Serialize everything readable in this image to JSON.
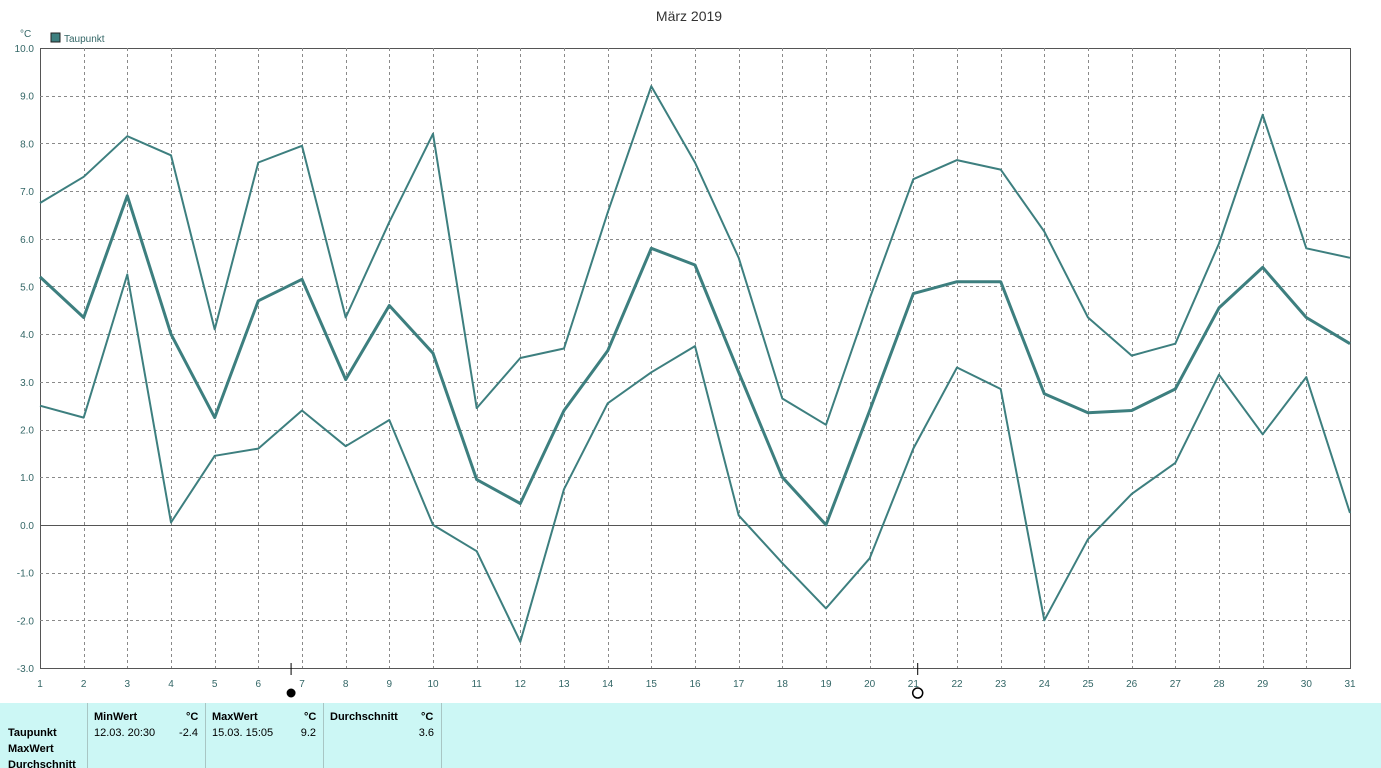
{
  "chart_data": {
    "type": "line",
    "title": "März 2019",
    "ylabel": "°C",
    "xlabel": "",
    "ylim": [
      -3.0,
      10.0
    ],
    "yticks": [
      "10.0",
      "9.0",
      "8.0",
      "7.0",
      "6.0",
      "5.0",
      "4.0",
      "3.0",
      "2.0",
      "1.0",
      "0.0",
      "-1.0",
      "-2.0",
      "-3.0"
    ],
    "x": [
      1,
      2,
      3,
      4,
      5,
      6,
      7,
      8,
      9,
      10,
      11,
      12,
      13,
      14,
      15,
      16,
      17,
      18,
      19,
      20,
      21,
      22,
      23,
      24,
      25,
      26,
      27,
      28,
      29,
      30,
      31
    ],
    "grid": true,
    "legend": {
      "position": "top-left",
      "entries": [
        "Taupunkt"
      ]
    },
    "series": [
      {
        "name": "Taupunkt",
        "color": "#3d7f7f",
        "values": [
          5.2,
          4.35,
          6.9,
          4.0,
          2.25,
          4.7,
          5.15,
          3.05,
          4.6,
          3.6,
          0.95,
          0.45,
          2.4,
          3.65,
          5.8,
          5.45,
          3.2,
          1.0,
          0.0,
          2.4,
          4.85,
          5.1,
          5.1,
          2.75,
          2.35,
          2.4,
          2.85,
          4.55,
          5.4,
          4.35,
          3.8
        ]
      },
      {
        "name": "",
        "color": "#3d7f7f",
        "values": [
          6.75,
          7.3,
          8.15,
          7.75,
          4.1,
          7.6,
          7.95,
          4.35,
          6.35,
          8.2,
          2.45,
          3.5,
          3.7,
          6.55,
          9.2,
          7.6,
          5.6,
          2.65,
          2.1,
          4.75,
          7.25,
          7.65,
          7.45,
          6.15,
          4.35,
          3.55,
          3.8,
          5.9,
          8.6,
          5.8,
          5.6
        ]
      },
      {
        "name": "",
        "color": "#3d7f7f",
        "values": [
          2.5,
          2.25,
          5.25,
          0.05,
          1.45,
          1.6,
          2.4,
          1.65,
          2.2,
          0.0,
          -0.55,
          -2.45,
          0.75,
          2.55,
          3.2,
          3.75,
          0.2,
          -0.8,
          -1.75,
          -0.7,
          1.6,
          3.3,
          2.85,
          -2.0,
          -0.3,
          0.65,
          1.3,
          3.15,
          1.9,
          3.1,
          0.25
        ]
      }
    ],
    "markers": [
      {
        "type": "filled-circle",
        "x": 6.75
      },
      {
        "type": "open-circle",
        "x": 21.1
      }
    ]
  },
  "footer": {
    "row_labels": [
      "Taupunkt",
      "MaxWert",
      "Durchschnitt"
    ],
    "min_header": "MinWert",
    "min_unit": "°C",
    "min_time": "12.03.  20:30",
    "min_value": "-2.4",
    "max_header": "MaxWert",
    "max_unit": "°C",
    "max_time": "15.03.  15:05",
    "max_value": "9.2",
    "avg_header": "Durchschnitt",
    "avg_unit": "°C",
    "avg_value": "3.6"
  }
}
